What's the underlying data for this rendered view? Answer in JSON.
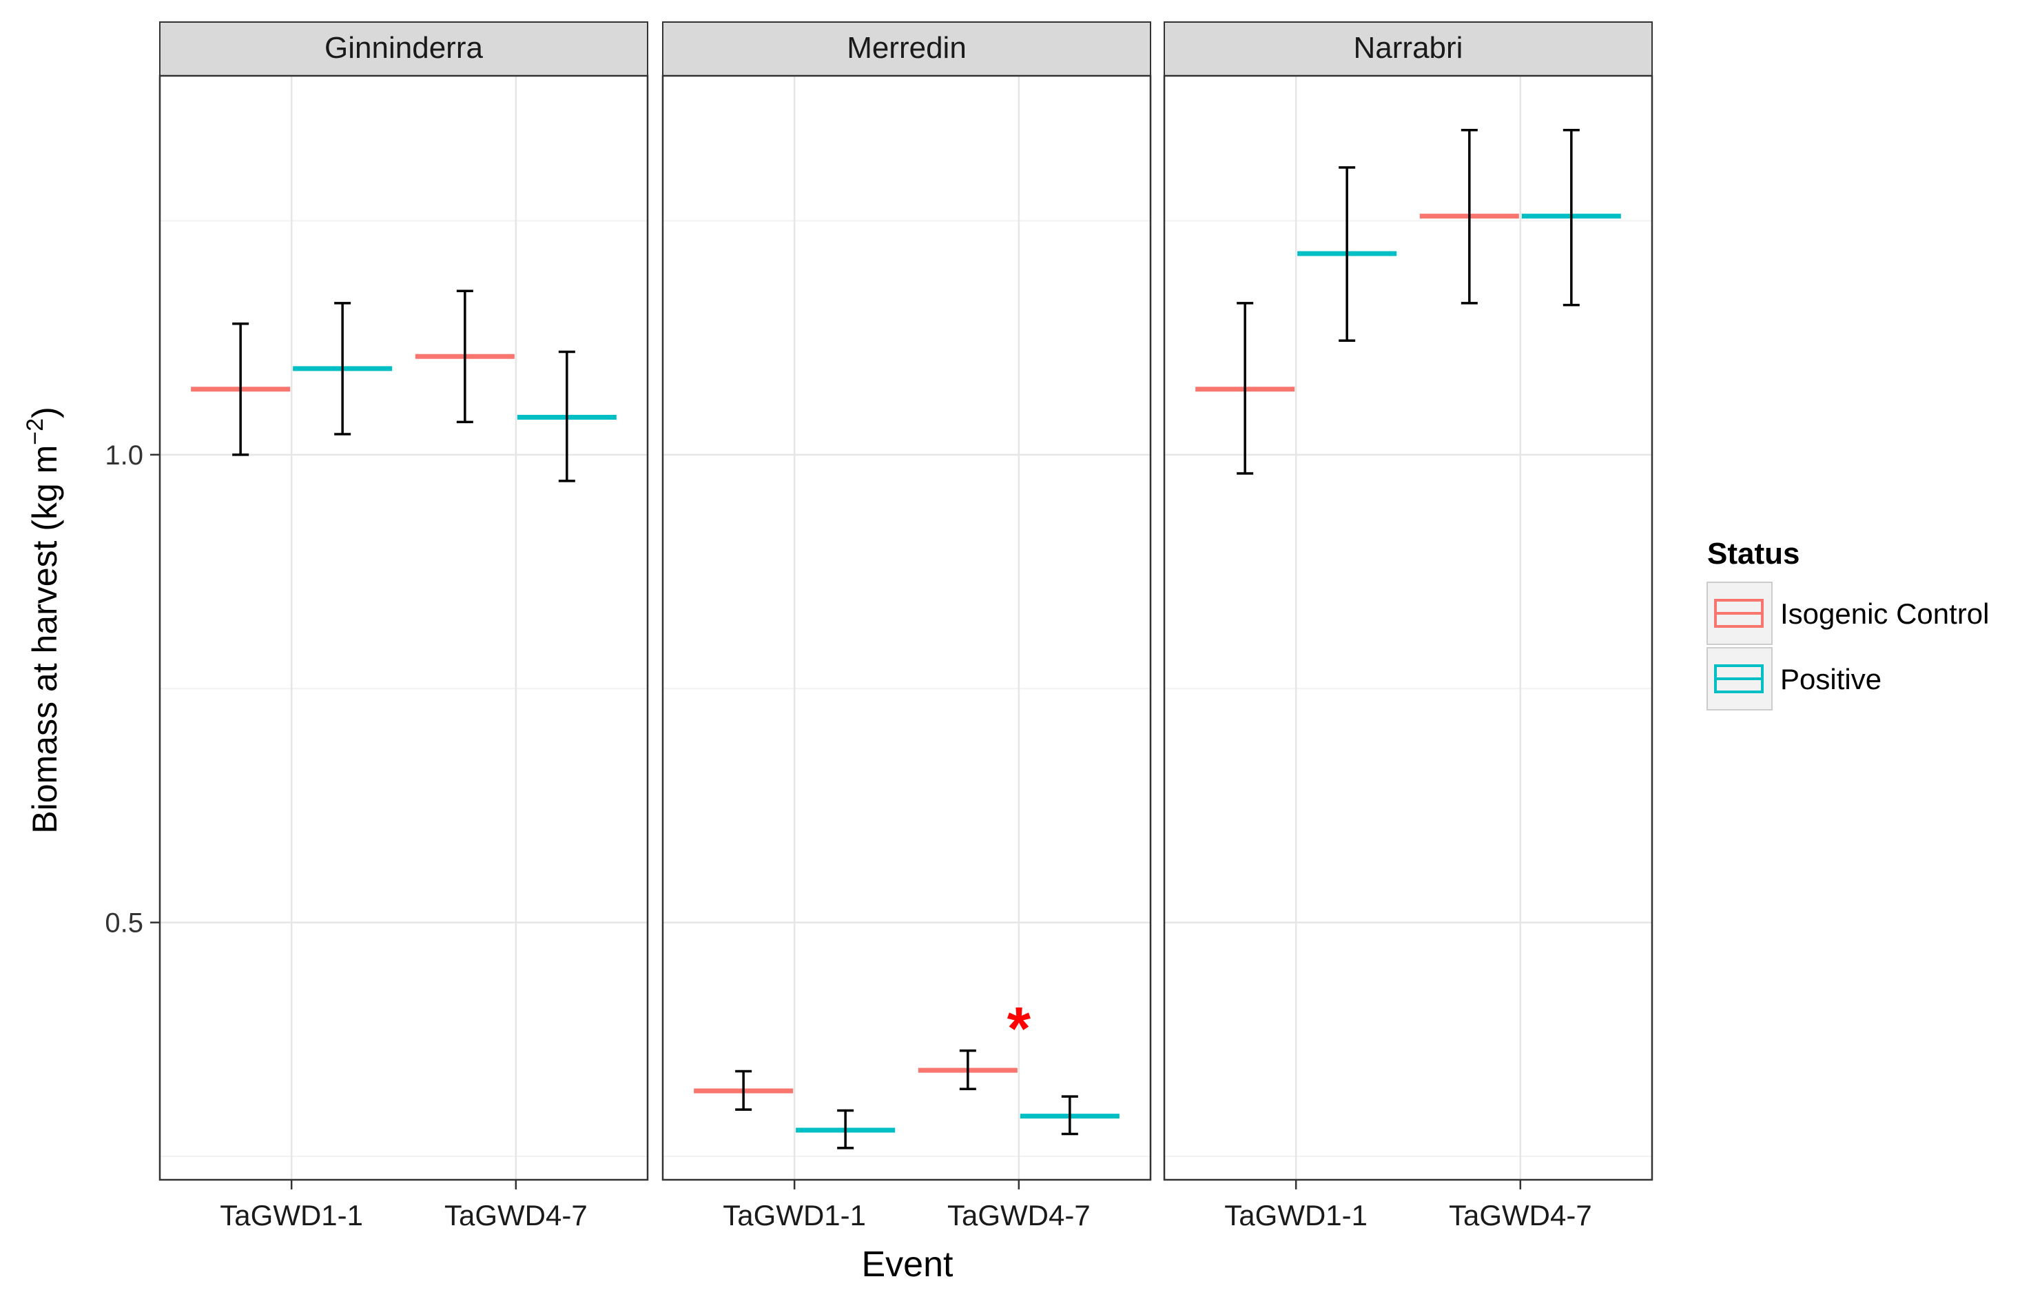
{
  "chart_data": {
    "type": "errorbar",
    "title": "",
    "xlabel": "Event",
    "ylabel": "Biomass at harvest (kg m",
    "ylabel_sup": "−2",
    "ylabel_close": ")",
    "ylim": [
      0.225,
      1.405
    ],
    "yticks": [
      0.5,
      1.0
    ],
    "ytick_labels": [
      "0.5",
      "1.0"
    ],
    "categories": [
      "TaGWD1-1",
      "TaGWD4-7"
    ],
    "legend": {
      "title": "Status",
      "items": [
        {
          "name": "Isogenic Control",
          "color": "#F8766D"
        },
        {
          "name": "Positive",
          "color": "#00BFC4"
        }
      ]
    },
    "significance_marker": {
      "text": "*",
      "color": "#FF0000",
      "panel": "Merredin",
      "category": "TaGWD4-7"
    },
    "panels": [
      {
        "name": "Ginninderra",
        "series": [
          {
            "name": "Isogenic Control",
            "values": [
              1.07,
              1.105
            ],
            "lower": [
              1.0,
              1.035
            ],
            "upper": [
              1.14,
              1.175
            ]
          },
          {
            "name": "Positive",
            "values": [
              1.092,
              1.04
            ],
            "lower": [
              1.022,
              0.972
            ],
            "upper": [
              1.162,
              1.11
            ]
          }
        ]
      },
      {
        "name": "Merredin",
        "series": [
          {
            "name": "Isogenic Control",
            "values": [
              0.32,
              0.342
            ],
            "lower": [
              0.3,
              0.322
            ],
            "upper": [
              0.341,
              0.363
            ]
          },
          {
            "name": "Positive",
            "values": [
              0.278,
              0.293
            ],
            "lower": [
              0.259,
              0.274
            ],
            "upper": [
              0.299,
              0.314
            ]
          }
        ]
      },
      {
        "name": "Narrabri",
        "series": [
          {
            "name": "Isogenic Control",
            "values": [
              1.07,
              1.255
            ],
            "lower": [
              0.98,
              1.162
            ],
            "upper": [
              1.162,
              1.347
            ]
          },
          {
            "name": "Positive",
            "values": [
              1.215,
              1.255
            ],
            "lower": [
              1.122,
              1.16
            ],
            "upper": [
              1.307,
              1.347
            ]
          }
        ]
      }
    ]
  }
}
